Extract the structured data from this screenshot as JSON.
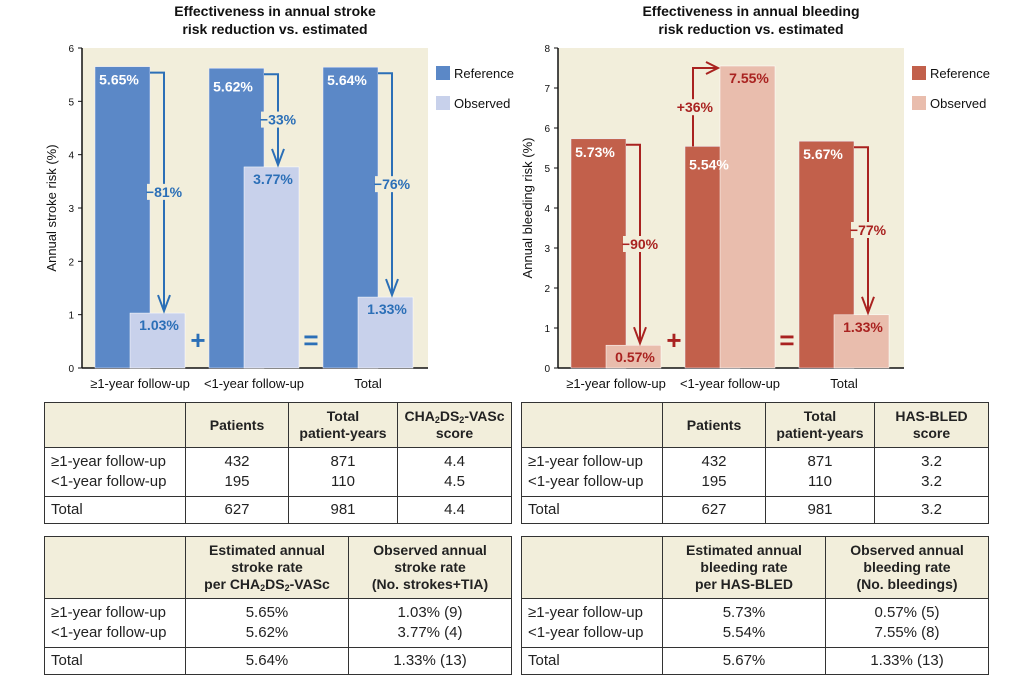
{
  "chart_data": [
    {
      "type": "bar",
      "title": [
        "Effectiveness in annual stroke",
        "risk reduction vs. estimated"
      ],
      "ylabel": "Annual stroke risk (%)",
      "ylim": [
        0,
        6
      ],
      "yticks": [
        "0",
        "1",
        "2",
        "3",
        "4",
        "5",
        "6"
      ],
      "categories": [
        "≥1-year follow-up",
        "<1-year follow-up",
        "Total"
      ],
      "series": [
        {
          "name": "Reference",
          "values": [
            5.65,
            5.62,
            5.64
          ],
          "labels": [
            "5.65%",
            "5.62%",
            "5.64%"
          ]
        },
        {
          "name": "Observed",
          "values": [
            1.03,
            3.77,
            1.33
          ],
          "labels": [
            "1.03%",
            "3.77%",
            "1.33%"
          ]
        }
      ],
      "changes": [
        "−81%",
        "−33%",
        "−76%"
      ],
      "operators": [
        "+",
        "="
      ],
      "legend": "right",
      "colors": {
        "reference": "#5b88c7",
        "observed": "#c8d1eb",
        "arrow": "#2b6fb7",
        "obs_text": "#2b6fb7",
        "background": "#f2eedb"
      }
    },
    {
      "type": "bar",
      "title": [
        "Effectiveness in annual bleeding",
        "risk reduction vs. estimated"
      ],
      "ylabel": "Annual bleeding risk (%)",
      "ylim": [
        0,
        8
      ],
      "yticks": [
        "0",
        "1",
        "2",
        "3",
        "4",
        "5",
        "6",
        "7",
        "8"
      ],
      "categories": [
        "≥1-year follow-up",
        "<1-year follow-up",
        "Total"
      ],
      "series": [
        {
          "name": "Reference",
          "values": [
            5.73,
            5.54,
            5.67
          ],
          "labels": [
            "5.73%",
            "5.54%",
            "5.67%"
          ]
        },
        {
          "name": "Observed",
          "values": [
            0.57,
            7.55,
            1.33
          ],
          "labels": [
            "0.57%",
            "7.55%",
            "1.33%"
          ]
        }
      ],
      "changes": [
        "−90%",
        "+36%",
        "−77%"
      ],
      "operators": [
        "+",
        "="
      ],
      "legend": "right",
      "colors": {
        "reference": "#c2604b",
        "observed": "#e9bdad",
        "arrow": "#a92220",
        "obs_text": "#a92220",
        "background": "#f2eedb"
      }
    }
  ],
  "tables": {
    "stroke_patients": {
      "headers": {
        "patients": "Patients",
        "years_1": "Total",
        "years_2": "patient-years",
        "score_a": "CHA",
        "score_s1": "2",
        "score_b": "DS",
        "score_s2": "2",
        "score_c": "-VASc",
        "score_d": "score"
      },
      "rows": [
        [
          "≥1-year follow-up",
          "432",
          "871",
          "4.4"
        ],
        [
          "<1-year follow-up",
          "195",
          "110",
          "4.5"
        ],
        [
          "Total",
          "627",
          "981",
          "4.4"
        ]
      ]
    },
    "stroke_rates": {
      "headers": {
        "est_1": "Estimated annual",
        "est_2": "stroke rate",
        "est_3a": "per CHA",
        "est_s1": "2",
        "est_3b": "DS",
        "est_s2": "2",
        "est_3c": "-VASc",
        "obs_1": "Observed annual",
        "obs_2": "stroke rate",
        "obs_3": "(No. strokes+TIA)"
      },
      "rows": [
        [
          "≥1-year follow-up",
          "5.65%",
          "1.03% (9)"
        ],
        [
          "<1-year follow-up",
          "5.62%",
          "3.77% (4)"
        ],
        [
          "Total",
          "5.64%",
          "1.33% (13)"
        ]
      ]
    },
    "bleeding_patients": {
      "headers": {
        "patients": "Patients",
        "years_1": "Total",
        "years_2": "patient-years",
        "score_1": "HAS-BLED",
        "score_2": "score"
      },
      "rows": [
        [
          "≥1-year follow-up",
          "432",
          "871",
          "3.2"
        ],
        [
          "<1-year follow-up",
          "195",
          "110",
          "3.2"
        ],
        [
          "Total",
          "627",
          "981",
          "3.2"
        ]
      ]
    },
    "bleeding_rates": {
      "headers": {
        "est_1": "Estimated annual",
        "est_2": "bleeding rate",
        "est_3": "per HAS-BLED",
        "obs_1": "Observed annual",
        "obs_2": "bleeding rate",
        "obs_3": "(No. bleedings)"
      },
      "rows": [
        [
          "≥1-year follow-up",
          "5.73%",
          "0.57% (5)"
        ],
        [
          "<1-year follow-up",
          "5.54%",
          "7.55% (8)"
        ],
        [
          "Total",
          "5.67%",
          "1.33% (13)"
        ]
      ]
    }
  }
}
